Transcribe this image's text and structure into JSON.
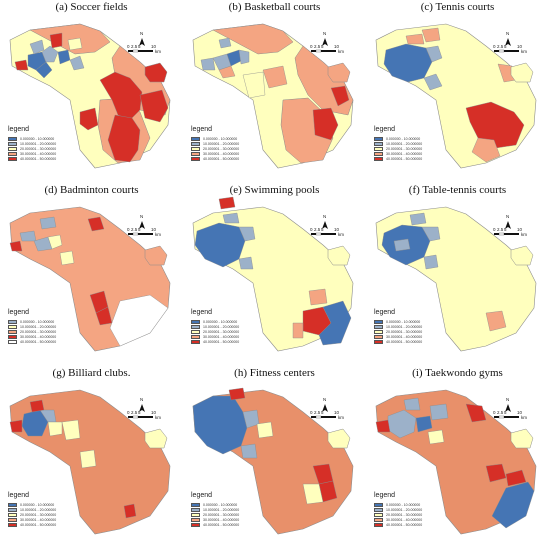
{
  "colors": {
    "light_yellow": "#FFFFBE",
    "salmon": "#F4A582",
    "orange": "#E8906A",
    "red": "#D62F27",
    "blue": "#4575B4",
    "grey_blue": "#9CB1C9",
    "light_grey_blue": "#B7C6D9",
    "white": "#FFFFFF",
    "border": "#8C8C8C"
  },
  "legend_label": "legend",
  "north_label": "N",
  "scale": {
    "ticks": [
      "0",
      "2.5",
      "5",
      "10"
    ],
    "unit": "km"
  },
  "panels": [
    {
      "id": "a",
      "title": "(a)  Soccer fields",
      "legend_colors": [
        "#4575B4",
        "#9CB1C9",
        "#FFFFBE",
        "#F4A582",
        "#D62F27"
      ]
    },
    {
      "id": "b",
      "title": "(b)  Basketball courts",
      "legend_colors": [
        "#4575B4",
        "#9CB1C9",
        "#FFFFBE",
        "#F4A582",
        "#D62F27"
      ]
    },
    {
      "id": "c",
      "title": "(c)  Tennis courts",
      "legend_colors": [
        "#4575B4",
        "#9CB1C9",
        "#FFFFBE",
        "#F4A582",
        "#D62F27"
      ]
    },
    {
      "id": "d",
      "title": "(d)  Badminton courts",
      "legend_colors": [
        "#9CB1C9",
        "#FFFFBE",
        "#F4A582",
        "#D62F27",
        "#FFFFFF"
      ]
    },
    {
      "id": "e",
      "title": "(e)  Swimming pools",
      "legend_colors": [
        "#4575B4",
        "#9CB1C9",
        "#FFFFBE",
        "#F4A582",
        "#D62F27"
      ]
    },
    {
      "id": "f",
      "title": "(f)  Table-tennis courts",
      "legend_colors": [
        "#4575B4",
        "#9CB1C9",
        "#FFFFBE",
        "#F4A582",
        "#D62F27"
      ]
    },
    {
      "id": "g",
      "title": "(g)  Billiard clubs.",
      "legend_colors": [
        "#4575B4",
        "#9CB1C9",
        "#FFFFBE",
        "#F4A582",
        "#D62F27"
      ]
    },
    {
      "id": "h",
      "title": "(h)  Fitness centers",
      "legend_colors": [
        "#4575B4",
        "#9CB1C9",
        "#FFFFBE",
        "#F4A582",
        "#D62F27"
      ]
    },
    {
      "id": "i",
      "title": "(i)  Taekwondo gyms",
      "legend_colors": [
        "#4575B4",
        "#9CB1C9",
        "#FFFFBE",
        "#F4A582",
        "#D62F27"
      ]
    }
  ]
}
